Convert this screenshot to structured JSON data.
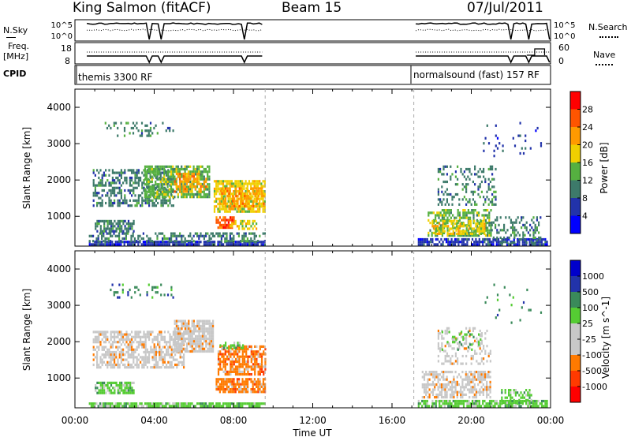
{
  "header": {
    "station": "King Salmon (fitACF)",
    "beam": "Beam 15",
    "date": "07/Jul/2011"
  },
  "top_panels": {
    "nsky_label": "N.Sky",
    "nsky_ticks": [
      "10^5",
      "10^0"
    ],
    "nsearch_label": "N.Search",
    "nsearch_ticks": [
      "10^5",
      "10^0"
    ],
    "freq_label_1": "Freq.",
    "freq_label_2": "[MHz]",
    "freq_ticks": [
      "18",
      "8"
    ],
    "nave_label": "Nave",
    "nave_ticks": [
      "60",
      "0"
    ],
    "cpid_label": "CPID",
    "cpid_segments": [
      {
        "text": "themis 3300 RF",
        "start_hour": 0.0
      },
      {
        "text": "normalsound (fast) 157 RF",
        "start_hour": 17.1
      }
    ]
  },
  "colors": {
    "power_scale": [
      "#0000ff",
      "#2233aa",
      "#3d7a6a",
      "#55b040",
      "#f0d000",
      "#ff9a00",
      "#ff5500",
      "#ff0000"
    ],
    "velocity_scale": [
      "#ff0000",
      "#ff3a00",
      "#ff7a00",
      "#c8c8c8",
      "#c8c8c8",
      "#55cc33",
      "#3a8a5a",
      "#2233aa",
      "#0000cc"
    ],
    "gap_line": "#aaaaaa"
  },
  "chart_data": [
    {
      "type": "heatmap",
      "title": "",
      "xlabel": "",
      "ylabel": "Slant Range [km]",
      "xlim": [
        0,
        24
      ],
      "ylim": [
        180,
        4500
      ],
      "x_ticks": [
        "00:00",
        "04:00",
        "08:00",
        "12:00",
        "16:00",
        "20:00",
        "00:00"
      ],
      "y_ticks": [
        "1000",
        "2000",
        "3000",
        "4000"
      ],
      "colorbar_label": "Power [dB]",
      "colorbar_ticks": [
        "4",
        "8",
        "12",
        "16",
        "20",
        "24",
        "28"
      ],
      "data_gap_hours": [
        9.6,
        17.1
      ],
      "regions": [
        {
          "t0": 0.7,
          "t1": 9.6,
          "r0": 200,
          "r1": 330,
          "level": 1,
          "density": 0.9
        },
        {
          "t0": 0.7,
          "t1": 9.6,
          "r0": 330,
          "r1": 560,
          "level": 2,
          "density": 0.45
        },
        {
          "t0": 1.0,
          "t1": 3.0,
          "r0": 600,
          "r1": 900,
          "level": 2,
          "density": 0.75
        },
        {
          "t0": 0.9,
          "t1": 5.0,
          "r0": 1300,
          "r1": 2300,
          "level": 2,
          "density": 0.5
        },
        {
          "t0": 3.5,
          "t1": 6.8,
          "r0": 1500,
          "r1": 2400,
          "level": 3,
          "density": 0.7
        },
        {
          "t0": 5.0,
          "t1": 6.6,
          "r0": 1700,
          "r1": 2200,
          "level": 5,
          "density": 0.55
        },
        {
          "t0": 7.0,
          "t1": 9.6,
          "r0": 1100,
          "r1": 2000,
          "level": 4,
          "density": 0.75
        },
        {
          "t0": 7.3,
          "t1": 9.5,
          "r0": 1200,
          "r1": 1800,
          "level": 5,
          "density": 0.5
        },
        {
          "t0": 7.1,
          "t1": 8.0,
          "r0": 700,
          "r1": 1000,
          "level": 6,
          "density": 0.7
        },
        {
          "t0": 7.8,
          "t1": 9.2,
          "r0": 650,
          "r1": 900,
          "level": 4,
          "density": 0.6
        },
        {
          "t0": 1.5,
          "t1": 5.0,
          "r0": 3200,
          "r1": 3600,
          "level": 2,
          "density": 0.2
        },
        {
          "t0": 17.3,
          "t1": 23.8,
          "r0": 200,
          "r1": 400,
          "level": 1,
          "density": 0.8
        },
        {
          "t0": 17.8,
          "t1": 21.0,
          "r0": 500,
          "r1": 1200,
          "level": 3,
          "density": 0.55
        },
        {
          "t0": 18.0,
          "t1": 20.7,
          "r0": 500,
          "r1": 900,
          "level": 4,
          "density": 0.55
        },
        {
          "t0": 18.3,
          "t1": 21.2,
          "r0": 1300,
          "r1": 2400,
          "level": 2,
          "density": 0.3
        },
        {
          "t0": 21.0,
          "t1": 23.5,
          "r0": 300,
          "r1": 1000,
          "level": 2,
          "density": 0.35
        },
        {
          "t0": 20.5,
          "t1": 23.5,
          "r0": 2500,
          "r1": 3600,
          "level": 1,
          "density": 0.04
        }
      ]
    },
    {
      "type": "heatmap",
      "title": "",
      "xlabel": "Time UT",
      "ylabel": "Slant Range [km]",
      "xlim": [
        0,
        24
      ],
      "ylim": [
        180,
        4500
      ],
      "x_ticks": [
        "00:00",
        "04:00",
        "08:00",
        "12:00",
        "16:00",
        "20:00",
        "00:00"
      ],
      "y_ticks": [
        "1000",
        "2000",
        "3000",
        "4000"
      ],
      "colorbar_label": "Velocity [m s^-1]",
      "colorbar_ticks": [
        "-1000",
        "-500",
        "-100",
        "-25",
        "25",
        "100",
        "500",
        "1000"
      ],
      "data_gap_hours": [
        9.6,
        17.1
      ],
      "regions": [
        {
          "t0": 0.7,
          "t1": 9.6,
          "r0": 200,
          "r1": 330,
          "level": 5,
          "density": 0.85
        },
        {
          "t0": 1.0,
          "t1": 3.0,
          "r0": 600,
          "r1": 900,
          "level": 5,
          "density": 0.8
        },
        {
          "t0": 0.9,
          "t1": 5.5,
          "r0": 1300,
          "r1": 2300,
          "level": 3,
          "density": 0.6
        },
        {
          "t0": 5.0,
          "t1": 7.0,
          "r0": 1700,
          "r1": 2600,
          "level": 3,
          "density": 0.8
        },
        {
          "t0": 7.2,
          "t1": 9.6,
          "r0": 1100,
          "r1": 1900,
          "level": 2,
          "density": 0.75
        },
        {
          "t0": 7.1,
          "t1": 9.6,
          "r0": 650,
          "r1": 1000,
          "level": 2,
          "density": 0.8
        },
        {
          "t0": 7.3,
          "t1": 8.5,
          "r0": 1800,
          "r1": 2000,
          "level": 5,
          "density": 0.6
        },
        {
          "t0": 1.5,
          "t1": 5.0,
          "r0": 3200,
          "r1": 3600,
          "level": 6,
          "density": 0.15
        },
        {
          "t0": 17.3,
          "t1": 23.8,
          "r0": 200,
          "r1": 400,
          "level": 5,
          "density": 0.8
        },
        {
          "t0": 17.5,
          "t1": 21.0,
          "r0": 450,
          "r1": 1200,
          "level": 3,
          "density": 0.6
        },
        {
          "t0": 18.3,
          "t1": 21.0,
          "r0": 1400,
          "r1": 2400,
          "level": 3,
          "density": 0.3
        },
        {
          "t0": 18.5,
          "t1": 20.5,
          "r0": 1800,
          "r1": 2300,
          "level": 5,
          "density": 0.2
        },
        {
          "t0": 21.5,
          "t1": 23.0,
          "r0": 300,
          "r1": 700,
          "level": 5,
          "density": 0.5
        },
        {
          "t0": 20.5,
          "t1": 23.5,
          "r0": 2500,
          "r1": 3600,
          "level": 6,
          "density": 0.04
        }
      ]
    }
  ]
}
